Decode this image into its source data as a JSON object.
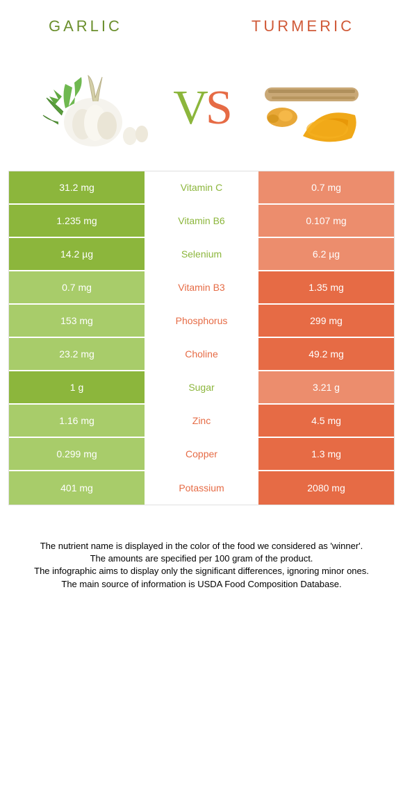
{
  "foods": {
    "left": "Garlic",
    "right": "Turmeric"
  },
  "vs": {
    "v": "V",
    "s": "S"
  },
  "colors": {
    "left_win": "#8cb63c",
    "left_lose": "#a8cc6a",
    "right_win": "#e66b45",
    "right_lose": "#ec8d6d",
    "label_left": "#8cb63c",
    "label_right": "#e66b45",
    "food_title_left": "#6b8f2d",
    "food_title_right": "#d05a38"
  },
  "rows": [
    {
      "label": "Vitamin C",
      "left": "31.2 mg",
      "right": "0.7 mg",
      "winner": "left"
    },
    {
      "label": "Vitamin B6",
      "left": "1.235 mg",
      "right": "0.107 mg",
      "winner": "left"
    },
    {
      "label": "Selenium",
      "left": "14.2 µg",
      "right": "6.2 µg",
      "winner": "left"
    },
    {
      "label": "Vitamin B3",
      "left": "0.7 mg",
      "right": "1.35 mg",
      "winner": "right"
    },
    {
      "label": "Phosphorus",
      "left": "153 mg",
      "right": "299 mg",
      "winner": "right"
    },
    {
      "label": "Choline",
      "left": "23.2 mg",
      "right": "49.2 mg",
      "winner": "right"
    },
    {
      "label": "Sugar",
      "left": "1 g",
      "right": "3.21 g",
      "winner": "left"
    },
    {
      "label": "Zinc",
      "left": "1.16 mg",
      "right": "4.5 mg",
      "winner": "right"
    },
    {
      "label": "Copper",
      "left": "0.299 mg",
      "right": "1.3 mg",
      "winner": "right"
    },
    {
      "label": "Potassium",
      "left": "401 mg",
      "right": "2080 mg",
      "winner": "right"
    }
  ],
  "footnote": {
    "l1": "The nutrient name is displayed in the color of the food we considered as 'winner'.",
    "l2": "The amounts are specified per 100 gram of the product.",
    "l3": "The infographic aims to display only the significant differences, ignoring minor ones.",
    "l4": "The main source of information is USDA Food Composition Database."
  }
}
